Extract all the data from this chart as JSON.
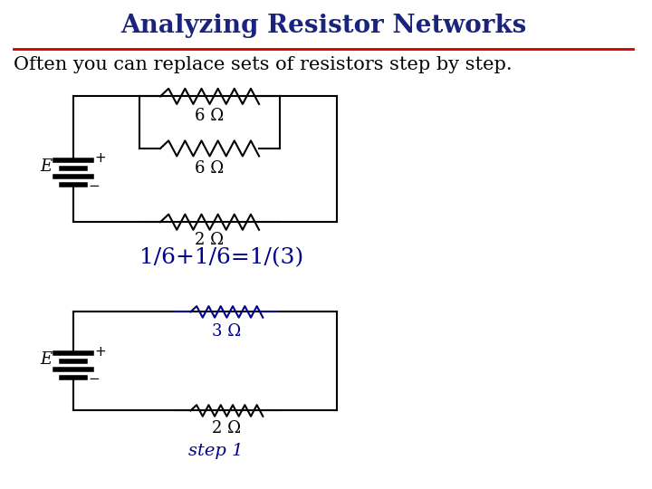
{
  "title": "Analyzing Resistor Networks",
  "title_color": "#1a237e",
  "title_fontsize": 20,
  "subtitle": "Often you can replace sets of resistors step by step.",
  "subtitle_fontsize": 15,
  "subtitle_color": "#000000",
  "divider_color": "#cc0000",
  "bg_color": "#ffffff",
  "c1_label_6ohm_top": "6 Ω",
  "c1_label_6ohm_mid": "6 Ω",
  "c1_label_2ohm": "2 Ω",
  "c1_color": "#000000",
  "c2_label_3ohm": "3 Ω",
  "c2_label_2ohm": "2 Ω",
  "c2_resistor_color": "#00008b",
  "c2_label_color": "#00008b",
  "c2_wire_color": "#000000",
  "equation": "1/6+1/6=1/(3)",
  "equation_color": "#00008b",
  "equation_fontsize": 18,
  "step_label": "step 1",
  "step_color": "#00008b",
  "step_fontsize": 14,
  "label_fontsize": 13
}
